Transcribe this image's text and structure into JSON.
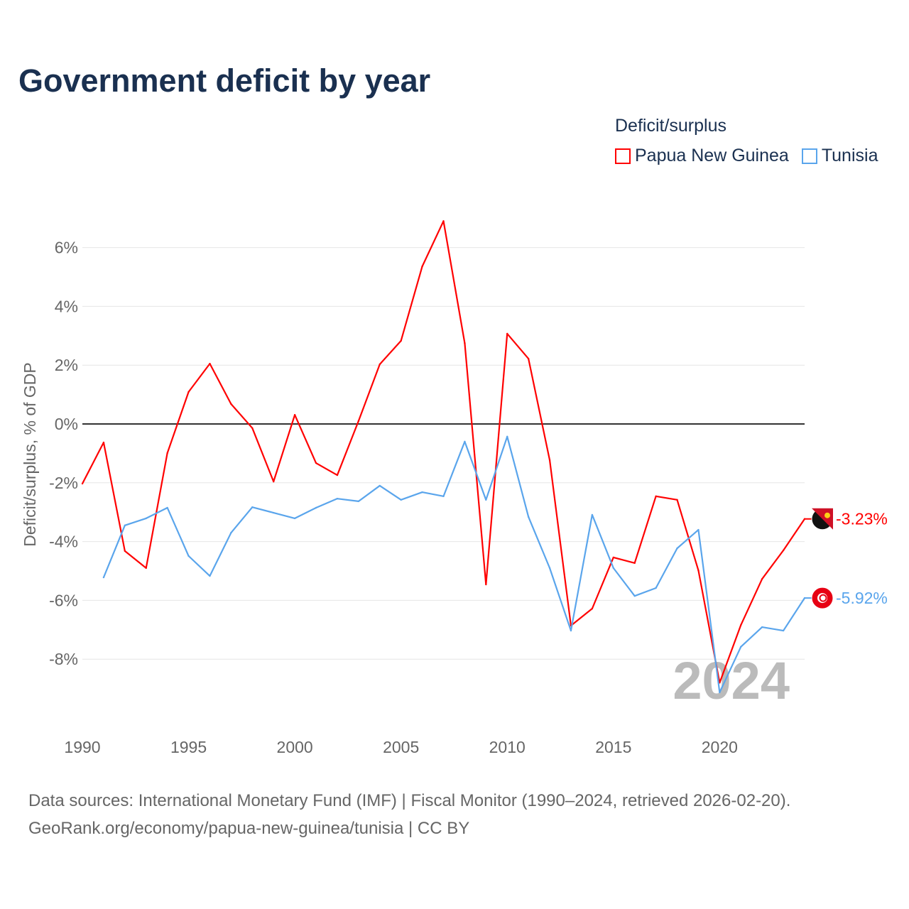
{
  "title": "Government deficit by year",
  "legend": {
    "title": "Deficit/surplus",
    "items": [
      "Papua New Guinea",
      "Tunisia"
    ]
  },
  "source": {
    "line1": "Data sources: International Monetary Fund (IMF) | Fiscal Monitor (1990–2024, retrieved 2026-02-20).",
    "line2": "GeoRank.org/economy/papua-new-guinea/tunisia | CC BY"
  },
  "chart_data": {
    "type": "line",
    "title": "Government deficit by year",
    "xlabel": "",
    "ylabel": "Deficit/surplus, % of GDP",
    "xlim": [
      1990,
      2024
    ],
    "ylim": [
      -10,
      7.5
    ],
    "x_ticks": [
      1990,
      1995,
      2000,
      2005,
      2010,
      2015,
      2020
    ],
    "y_ticks": [
      -8,
      -6,
      -4,
      -2,
      0,
      2,
      4,
      6
    ],
    "y_tick_labels": [
      "-8%",
      "-6%",
      "-4%",
      "-2%",
      "0%",
      "2%",
      "4%",
      "6%"
    ],
    "year_watermark": "2024",
    "legend_position": "top-right",
    "series": [
      {
        "name": "Papua New Guinea",
        "color": "#ff0000",
        "end_label": "-3.23%",
        "x": [
          1990,
          1991,
          1992,
          1993,
          1994,
          1995,
          1996,
          1997,
          1998,
          1999,
          2000,
          2001,
          2002,
          2003,
          2004,
          2005,
          2006,
          2007,
          2008,
          2009,
          2010,
          2011,
          2012,
          2013,
          2014,
          2015,
          2016,
          2017,
          2018,
          2019,
          2020,
          2021,
          2022,
          2023,
          2024
        ],
        "values": [
          -2.03,
          -0.63,
          -4.32,
          -4.9,
          -0.99,
          1.09,
          2.05,
          0.68,
          -0.14,
          -1.96,
          0.31,
          -1.33,
          -1.74,
          0.1,
          2.03,
          2.83,
          5.36,
          6.9,
          2.75,
          -5.46,
          3.07,
          2.22,
          -1.23,
          -6.86,
          -6.28,
          -4.54,
          -4.73,
          -2.46,
          -2.58,
          -4.98,
          -8.8,
          -6.84,
          -5.27,
          -4.3,
          -3.23
        ]
      },
      {
        "name": "Tunisia",
        "color": "#5aa5ec",
        "end_label": "-5.92%",
        "x": [
          1991,
          1992,
          1993,
          1994,
          1995,
          1996,
          1997,
          1998,
          1999,
          2000,
          2001,
          2002,
          2003,
          2004,
          2005,
          2006,
          2007,
          2008,
          2009,
          2010,
          2011,
          2012,
          2013,
          2014,
          2015,
          2016,
          2017,
          2018,
          2019,
          2020,
          2021,
          2022,
          2023,
          2024
        ],
        "values": [
          -5.22,
          -3.45,
          -3.21,
          -2.85,
          -4.49,
          -5.17,
          -3.7,
          -2.83,
          -3.02,
          -3.21,
          -2.85,
          -2.54,
          -2.63,
          -2.1,
          -2.58,
          -2.32,
          -2.46,
          -0.6,
          -2.58,
          -0.43,
          -3.16,
          -4.9,
          -7.03,
          -3.09,
          -4.9,
          -5.85,
          -5.58,
          -4.23,
          -3.6,
          -9.13,
          -7.58,
          -6.91,
          -7.03,
          -5.92
        ]
      }
    ]
  }
}
